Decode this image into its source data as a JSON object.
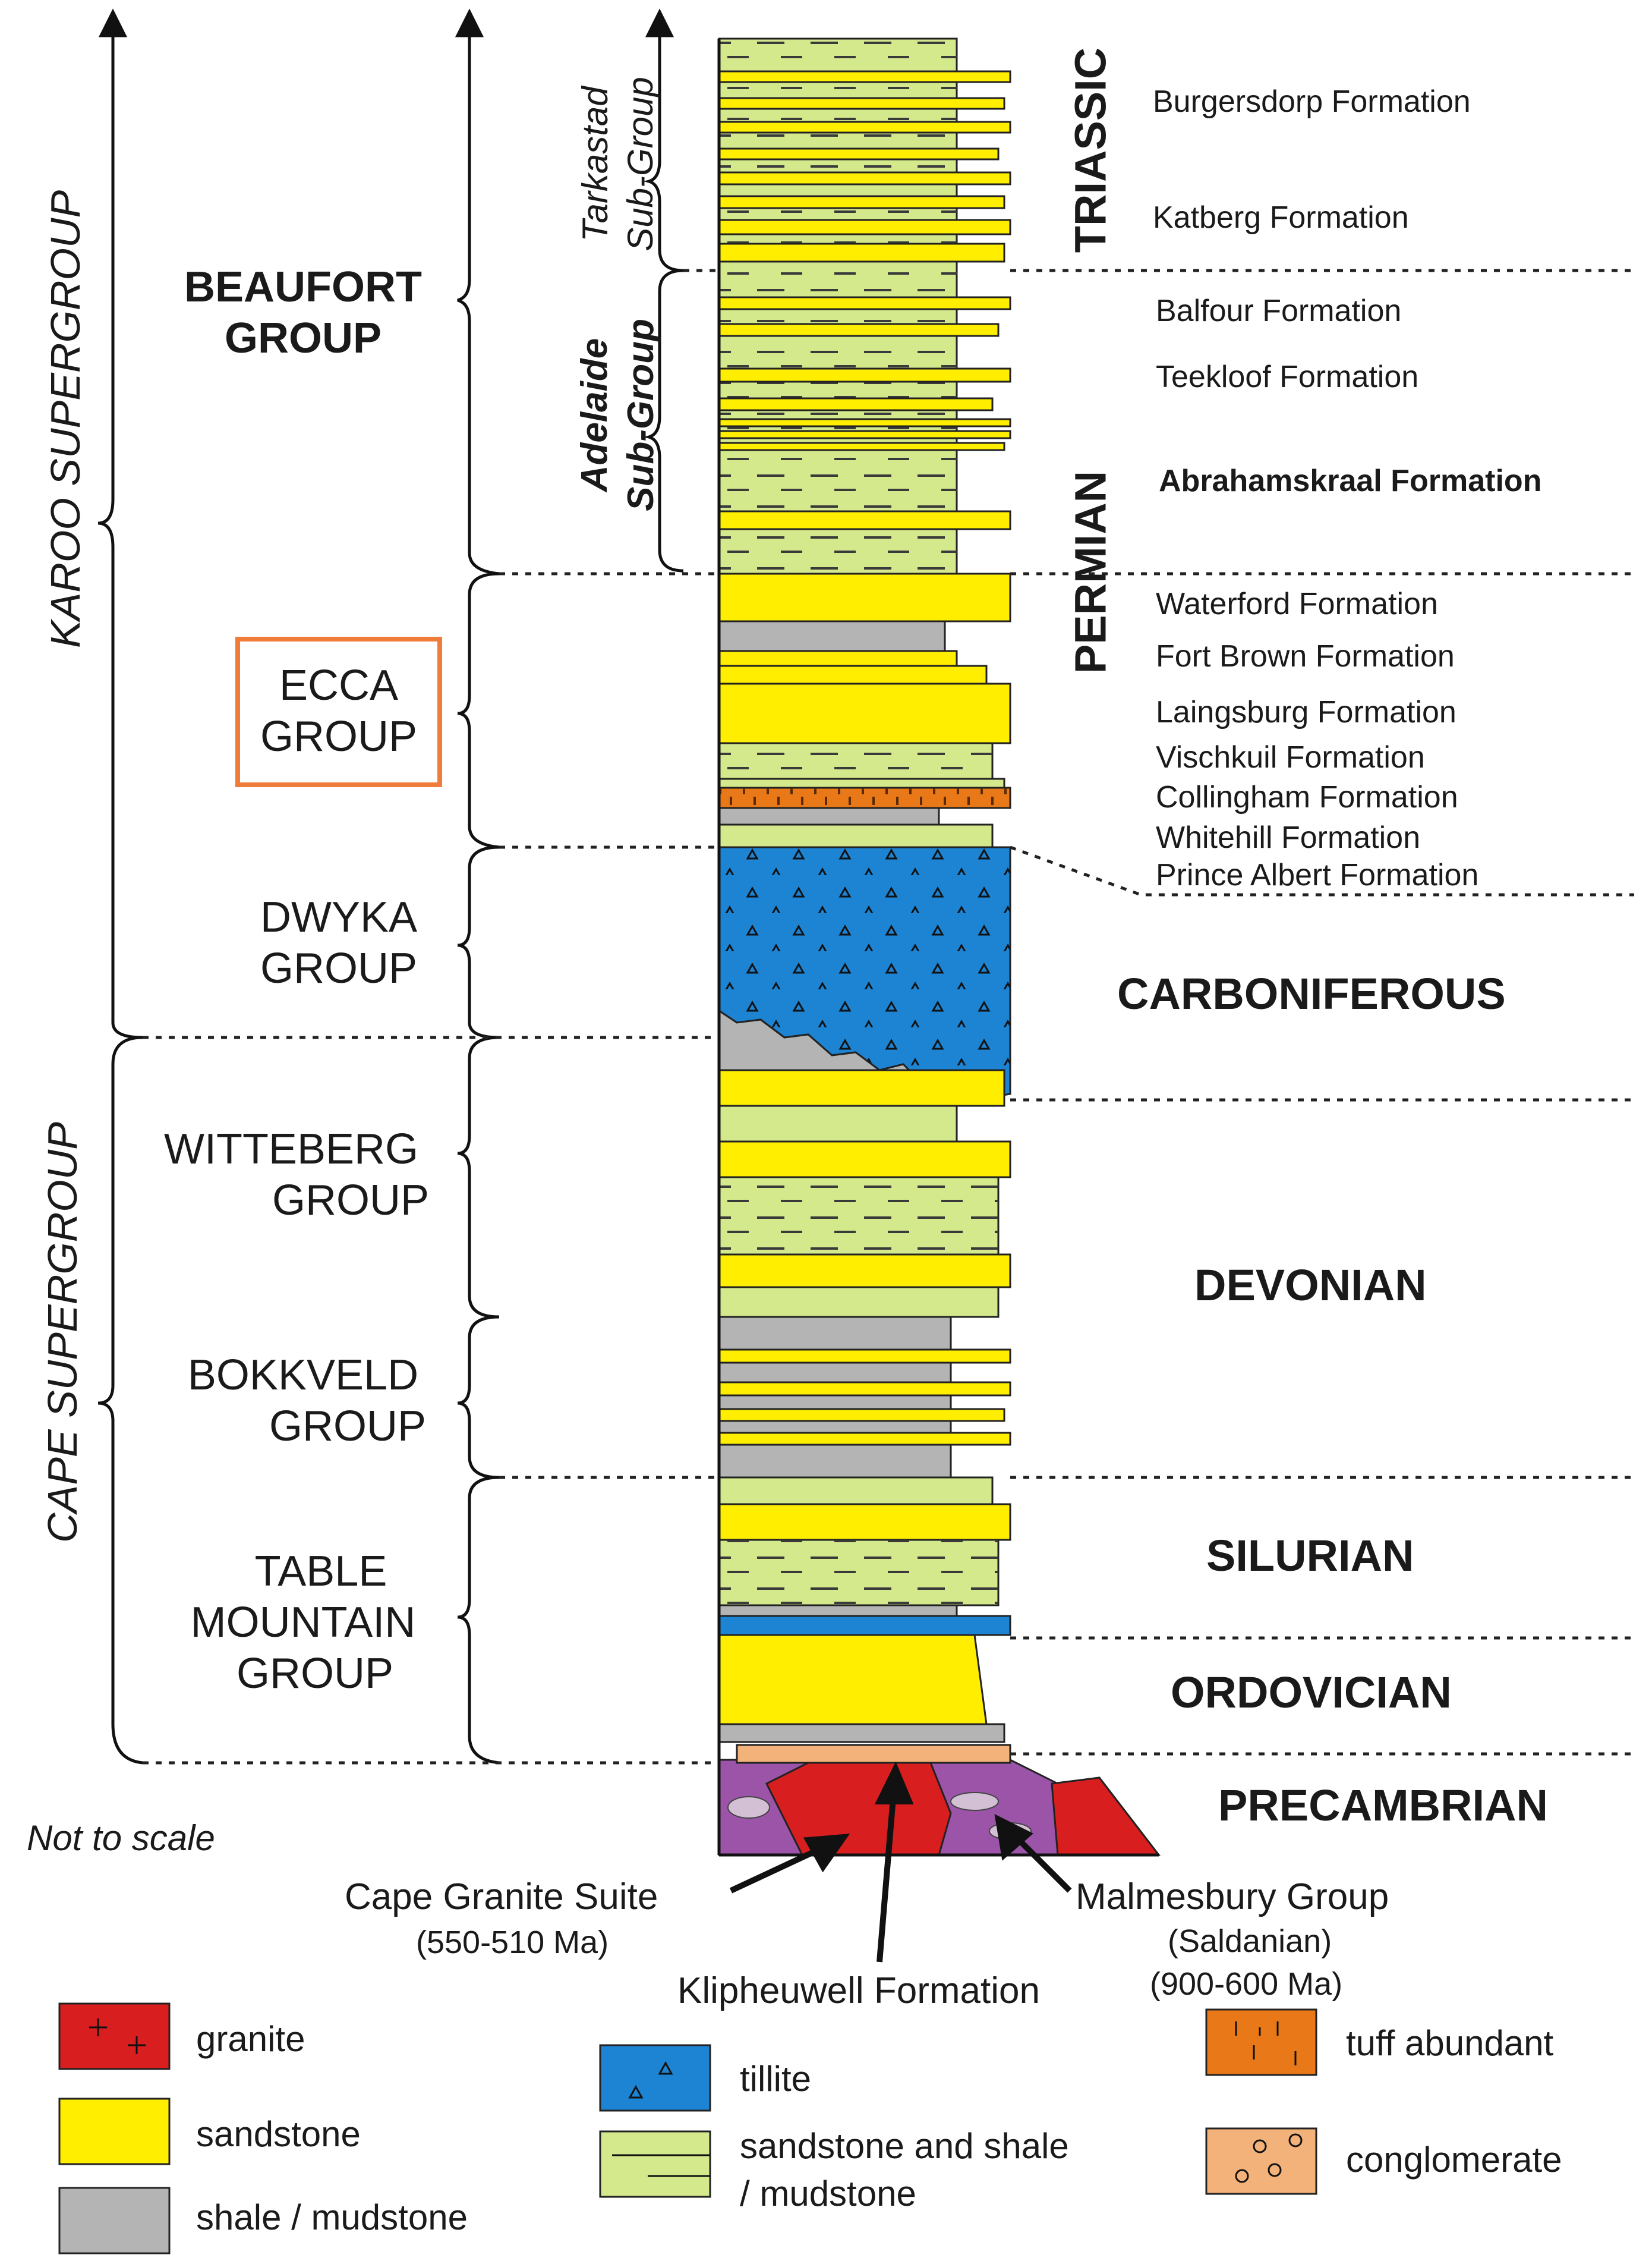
{
  "supergroups": {
    "karoo": "KAROO SUPERGROUP",
    "cape": "CAPE SUPERGROUP"
  },
  "groups": {
    "beaufort": [
      "BEAUFORT",
      "GROUP"
    ],
    "ecca": [
      "ECCA",
      "GROUP"
    ],
    "dwyka": [
      "DWYKA",
      "GROUP"
    ],
    "witteberg": [
      "WITTEBERG",
      "GROUP"
    ],
    "bokkveld": [
      "BOKKVELD",
      "GROUP"
    ],
    "table_mountain": [
      "TABLE",
      "MOUNTAIN",
      "GROUP"
    ]
  },
  "subgroups": {
    "tarkastad": [
      "Tarkastad",
      "Sub-Group"
    ],
    "adelaide": [
      "Adelaide",
      "Sub-Group"
    ]
  },
  "periods": {
    "triassic": "TRIASSIC",
    "permian": "PERMIAN",
    "carboniferous": "CARBONIFEROUS",
    "devonian": "DEVONIAN",
    "silurian": "SILURIAN",
    "ordovician": "ORDOVICIAN",
    "precambrian": "PRECAMBRIAN"
  },
  "formations": [
    "Burgersdorp Formation",
    "Katberg Formation",
    "Balfour Formation",
    "Teekloof Formation",
    "Abrahamskraal Formation",
    "Waterford Formation",
    "Fort Brown Formation",
    "Laingsburg Formation",
    "Vischkuil Formation",
    "Collingham Formation",
    "Whitehill Formation",
    "Prince Albert Formation"
  ],
  "basement": {
    "note": "Not to scale",
    "granite_suite": "Cape Granite Suite",
    "granite_age": "(550-510 Ma)",
    "klipheuwell": "Klipheuwell Formation",
    "malmesbury": "Malmesbury Group",
    "saldanian": "(Saldanian)",
    "malmesbury_age": "(900-600 Ma)"
  },
  "legend": {
    "granite": "granite",
    "sandstone": "sandstone",
    "shale": "shale / mudstone",
    "tillite": "tillite",
    "sandstone_shale": [
      "sandstone and shale",
      "/ mudstone"
    ],
    "tuff": "tuff abundant",
    "conglomerate": "conglomerate"
  },
  "colors": {
    "sandstone": "#ffee00",
    "sandstone_shale": "#d4e88c",
    "shale": "#b4b4b4",
    "tillite": "#1d84d4",
    "tuff": "#e87818",
    "conglomerate": "#f2b27a",
    "granite": "#d81e1e",
    "malmesbury": "#9b54a8",
    "highlight": "#f07c3a"
  }
}
